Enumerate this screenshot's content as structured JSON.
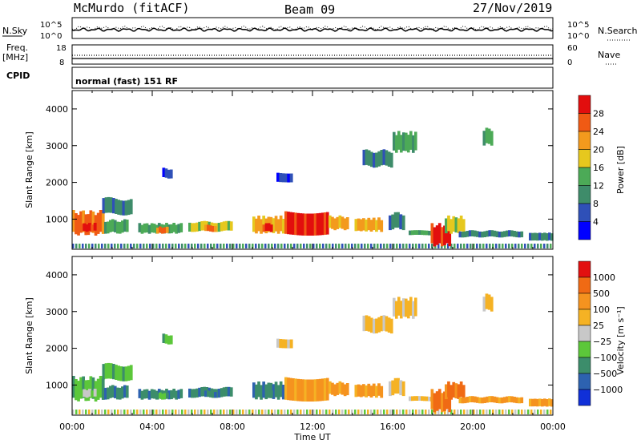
{
  "header": {
    "station": "McMurdo (fitACF)",
    "beam": "Beam 09",
    "date": "27/Nov/2019"
  },
  "top_panel": {
    "left_label": "N.Sky",
    "right_label": "N.Search",
    "left_ticks": [
      "10^5",
      "10^0"
    ],
    "right_ticks": [
      "10^5",
      "10^0"
    ]
  },
  "freq_panel": {
    "left_label": "Freq.",
    "left_unit": "[MHz]",
    "left_ticks": [
      "18",
      "8"
    ],
    "right_label": "Nave",
    "right_ticks": [
      "60",
      "0"
    ]
  },
  "cpid": {
    "label": "CPID",
    "value": "normal (fast) 151 RF"
  },
  "chart_data": [
    {
      "type": "heatmap",
      "name": "power",
      "ylabel": "Slant Range [km]",
      "xlabel": "Time UT",
      "ylim": [
        180,
        4500
      ],
      "x_ticks": [
        "00:00",
        "04:00",
        "08:00",
        "12:00",
        "16:00",
        "20:00",
        "00:00"
      ],
      "y_ticks": [
        1000,
        2000,
        3000,
        4000
      ],
      "colorbar": {
        "label": "Power [dB]",
        "ticks": [
          "4",
          "8",
          "12",
          "16",
          "20",
          "24",
          "28"
        ],
        "colors": [
          "#0000ff",
          "#2f50b8",
          "#3e8c6a",
          "#4caa57",
          "#e6c81e",
          "#f39a1d",
          "#f05a14",
          "#e20e0e"
        ]
      }
    },
    {
      "type": "heatmap",
      "name": "velocity",
      "ylabel": "Slant Range [km]",
      "xlabel": "Time UT",
      "ylim": [
        180,
        4500
      ],
      "x_ticks": [
        "00:00",
        "04:00",
        "08:00",
        "12:00",
        "16:00",
        "20:00",
        "00:00"
      ],
      "y_ticks": [
        1000,
        2000,
        3000,
        4000
      ],
      "colorbar": {
        "label": "Velocity [m s⁻¹]",
        "ticks": [
          "1000",
          "500",
          "100",
          "25",
          "−25",
          "−100",
          "−500",
          "−1000"
        ],
        "colors": [
          "#1030d8",
          "#2d62b0",
          "#3c8d6b",
          "#5cc73a",
          "#c8c8c8",
          "#f5b224",
          "#f5931f",
          "#f06a14",
          "#e21010"
        ]
      }
    }
  ],
  "x_axis": {
    "label": "Time UT"
  }
}
